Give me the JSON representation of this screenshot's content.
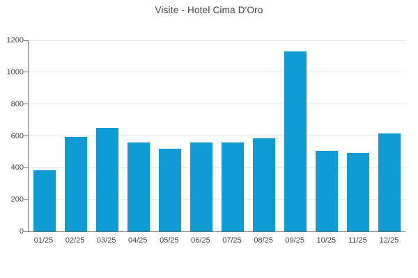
{
  "chart_data": {
    "type": "bar",
    "title": "Visite - Hotel Cima D'Oro",
    "categories": [
      "01/25",
      "02/25",
      "03/25",
      "04/25",
      "05/25",
      "06/25",
      "07/25",
      "08/25",
      "09/25",
      "10/25",
      "11/25",
      "12/25"
    ],
    "values": [
      385,
      595,
      650,
      560,
      520,
      560,
      560,
      585,
      1130,
      505,
      495,
      615
    ],
    "xlabel": "",
    "ylabel": "",
    "ylim": [
      0,
      1200
    ],
    "yticks": [
      0,
      200,
      400,
      600,
      800,
      1000,
      1200
    ],
    "grid": "horizontal",
    "legend_position": "none",
    "colors": {
      "bar": "#0f9bd4",
      "grid": "#e4e4e4",
      "axis": "#6e6e6e",
      "text": "#3c3c3c",
      "background": "#ffffff"
    }
  }
}
